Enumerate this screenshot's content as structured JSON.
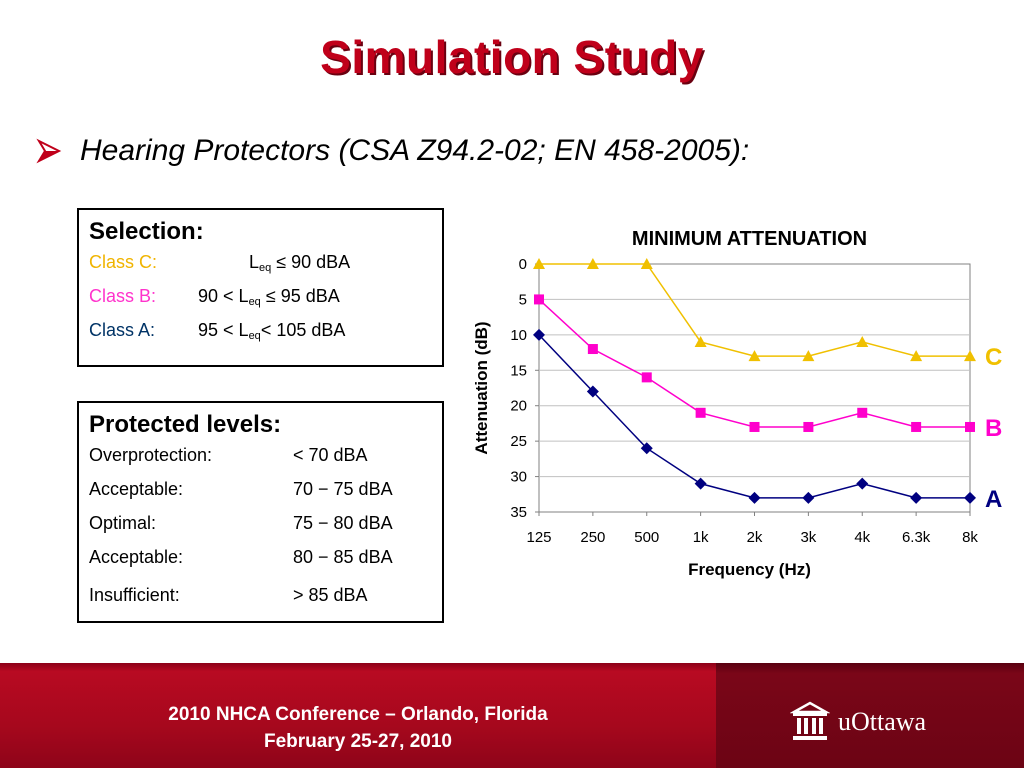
{
  "slide": {
    "title": "Simulation Study",
    "bullet": "Hearing Protectors (CSA Z94.2-02; EN 458-2005):"
  },
  "selection": {
    "title": "Selection:",
    "rows": [
      {
        "cls": "Class C:",
        "pre": "",
        "L": "L",
        "sub": "eq",
        "post": " ≤ 90 dBA",
        "color": "#f0b400"
      },
      {
        "cls": "Class B:",
        "pre": "90 < ",
        "L": "L",
        "sub": "eq",
        "post": " ≤ 95 dBA",
        "color": "#ff33cc"
      },
      {
        "cls": "Class A:",
        "pre": "95 < ",
        "L": "L",
        "sub": "eq",
        "post": "< 105 dBA",
        "color": "#003366"
      }
    ]
  },
  "levels": {
    "title": "Protected levels:",
    "rows": [
      {
        "label": "Overprotection:",
        "value": "< 70 dBA"
      },
      {
        "label": "Acceptable:",
        "value": "70 − 75 dBA"
      },
      {
        "label": "Optimal:",
        "value": "75 − 80 dBA"
      },
      {
        "label": "Acceptable:",
        "value": "80 − 85 dBA"
      },
      {
        "label": "Insufficient:",
        "value": "> 85 dBA"
      }
    ]
  },
  "chart_data": {
    "type": "line",
    "title": "MINIMUM ATTENUATION",
    "xlabel": "Frequency (Hz)",
    "ylabel": "Attenuation (dB)",
    "categories": [
      "125",
      "250",
      "500",
      "1k",
      "2k",
      "3k",
      "4k",
      "6.3k",
      "8k"
    ],
    "y_ticks": [
      0,
      5,
      10,
      15,
      20,
      25,
      30,
      35
    ],
    "ylim": [
      0,
      35
    ],
    "y_inverted": true,
    "grid": "horizontal",
    "series": [
      {
        "name": "C",
        "color": "#f0c000",
        "marker": "triangle",
        "values": [
          0,
          0,
          0,
          11,
          13,
          13,
          11,
          13,
          13
        ]
      },
      {
        "name": "B",
        "color": "#ff00cc",
        "marker": "square",
        "values": [
          5,
          12,
          16,
          21,
          23,
          23,
          21,
          23,
          23
        ]
      },
      {
        "name": "A",
        "color": "#000080",
        "marker": "diamond",
        "values": [
          10,
          18,
          26,
          31,
          33,
          33,
          31,
          33,
          33
        ]
      }
    ]
  },
  "footer": {
    "line1": "2010 NHCA Conference – Orlando, Florida",
    "line2": "February 25-27, 2010",
    "logo_text": "uOttawa"
  }
}
